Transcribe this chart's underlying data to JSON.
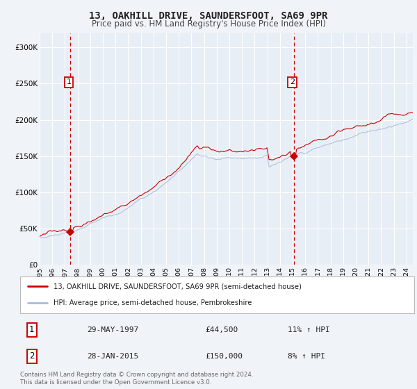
{
  "title": "13, OAKHILL DRIVE, SAUNDERSFOOT, SA69 9PR",
  "subtitle": "Price paid vs. HM Land Registry's House Price Index (HPI)",
  "title_fontsize": 10,
  "subtitle_fontsize": 8.5,
  "background_color": "#f0f4f8",
  "plot_bg_color": "#e8eef5",
  "grid_color": "#ffffff",
  "red_line_color": "#cc0000",
  "blue_line_color": "#aabbdd",
  "dashed_line_color": "#cc0000",
  "marker_color": "#cc0000",
  "ylim": [
    0,
    320000
  ],
  "yticks": [
    0,
    50000,
    100000,
    150000,
    200000,
    250000,
    300000
  ],
  "ytick_labels": [
    "£0",
    "£50K",
    "£100K",
    "£150K",
    "£200K",
    "£250K",
    "£300K"
  ],
  "xmin_year": 1995,
  "xmax_year": 2024.5,
  "xtick_years": [
    1995,
    1996,
    1997,
    1998,
    1999,
    2000,
    2001,
    2002,
    2003,
    2004,
    2005,
    2006,
    2007,
    2008,
    2009,
    2010,
    2011,
    2012,
    2013,
    2014,
    2015,
    2016,
    2017,
    2018,
    2019,
    2020,
    2021,
    2022,
    2023,
    2024
  ],
  "sale1_x": 1997.41,
  "sale1_y": 44500,
  "sale1_label": "1",
  "sale2_x": 2015.08,
  "sale2_y": 150000,
  "sale2_label": "2",
  "legend_red_label": "13, OAKHILL DRIVE, SAUNDERSFOOT, SA69 9PR (semi-detached house)",
  "legend_blue_label": "HPI: Average price, semi-detached house, Pembrokeshire",
  "table_row1_num": "1",
  "table_row1_date": "29-MAY-1997",
  "table_row1_price": "£44,500",
  "table_row1_hpi": "11% ↑ HPI",
  "table_row2_num": "2",
  "table_row2_date": "28-JAN-2015",
  "table_row2_price": "£150,000",
  "table_row2_hpi": "8% ↑ HPI",
  "footnote": "Contains HM Land Registry data © Crown copyright and database right 2024.\nThis data is licensed under the Open Government Licence v3.0."
}
